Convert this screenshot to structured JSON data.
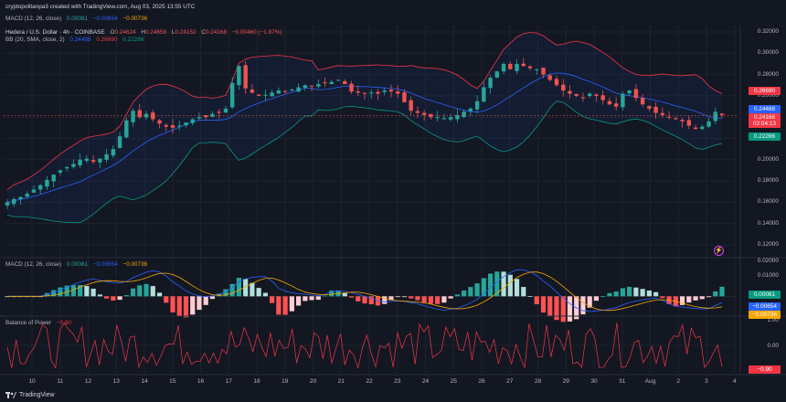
{
  "header": {
    "attribution": "cryptopolitanpa3 created with TradingView.com, Aug 03, 2025 13:55 UTC",
    "macd_top": {
      "label": "MACD (12, 26, close)",
      "v1": "0.00081",
      "v2": "−0.00654",
      "v3": "−0.00736"
    },
    "symbol": "Hedera / U.S. Dollar · 4h · COINBASE",
    "ohlc": {
      "o_label": "O",
      "o": "0.24624",
      "h_label": "H",
      "h": "0.24658",
      "l_label": "L",
      "l": "0.24152",
      "c_label": "C",
      "c": "0.24168",
      "chg": "−0.00460 (−1.87%)"
    },
    "bb": {
      "label": "BB (20, SMA, close, 2)",
      "basis": "0.24488",
      "upper": "0.26690",
      "lower": "0.22286"
    }
  },
  "price_axis": {
    "labels": [
      "0.32000",
      "0.30000",
      "0.28000",
      "0.26000",
      "0.24000",
      "0.22000",
      "0.20000",
      "0.18000",
      "0.16000",
      "0.14000",
      "0.12000"
    ],
    "badges": [
      {
        "value": "0.26690",
        "color": "#f23645"
      },
      {
        "value": "0.24488",
        "color": "#2962ff"
      },
      {
        "value": "0.24168",
        "color": "#f23645"
      },
      {
        "value": "02:04:13",
        "color": "#f23645"
      },
      {
        "value": "0.22286",
        "color": "#089981"
      }
    ]
  },
  "macd_panel": {
    "label": "MACD (12, 26, close)",
    "v1": "0.00081",
    "v2": "−0.00654",
    "v3": "−0.00736",
    "axis_labels": [
      "0.02000",
      "0.01000"
    ],
    "badges": [
      {
        "value": "0.00081",
        "color": "#089981"
      },
      {
        "value": "−0.00654",
        "color": "#2962ff"
      },
      {
        "value": "−0.00736",
        "color": "#f7a600"
      }
    ]
  },
  "bop_panel": {
    "label": "Balance of Power",
    "value": "−0.90",
    "axis_labels": [
      "1.00",
      "0.00"
    ],
    "badge": {
      "value": "−0.90",
      "color": "#f23645"
    }
  },
  "time_axis": [
    "10",
    "11",
    "12",
    "13",
    "14",
    "15",
    "16",
    "17",
    "18",
    "19",
    "20",
    "21",
    "22",
    "23",
    "24",
    "25",
    "26",
    "27",
    "28",
    "29",
    "30",
    "31",
    "Aug",
    "2",
    "3",
    "4"
  ],
  "footer": {
    "brand": "TradingView"
  },
  "colors": {
    "bg": "#131722",
    "up": "#26a69a",
    "down": "#ef5350",
    "bb_upper": "#f23645",
    "bb_basis": "#2962ff",
    "bb_lower": "#089981",
    "macd": "#2962ff",
    "signal": "#f7a600",
    "bop": "#f23645"
  },
  "chart_data": [
    {
      "type": "candlestick",
      "title": "Hedera / U.S. Dollar · 4h · COINBASE",
      "x_range": [
        "Jul 9",
        "Aug 3"
      ],
      "ylim": [
        0.11,
        0.33
      ],
      "close_path": [
        0.16,
        0.163,
        0.165,
        0.168,
        0.172,
        0.176,
        0.181,
        0.186,
        0.19,
        0.193,
        0.196,
        0.2,
        0.201,
        0.198,
        0.201,
        0.205,
        0.21,
        0.222,
        0.237,
        0.246,
        0.24,
        0.243,
        0.238,
        0.234,
        0.231,
        0.23,
        0.232,
        0.235,
        0.238,
        0.24,
        0.24,
        0.243,
        0.244,
        0.248,
        0.272,
        0.288,
        0.267,
        0.263,
        0.26,
        0.261,
        0.263,
        0.265,
        0.264,
        0.266,
        0.268,
        0.27,
        0.269,
        0.271,
        0.272,
        0.273,
        0.275,
        0.271,
        0.264,
        0.263,
        0.262,
        0.263,
        0.262,
        0.265,
        0.264,
        0.262,
        0.254,
        0.246,
        0.244,
        0.242,
        0.24,
        0.24,
        0.239,
        0.24,
        0.242,
        0.245,
        0.248,
        0.255,
        0.268,
        0.277,
        0.283,
        0.29,
        0.285,
        0.29,
        0.288,
        0.286,
        0.285,
        0.28,
        0.275,
        0.27,
        0.265,
        0.262,
        0.26,
        0.258,
        0.262,
        0.26,
        0.256,
        0.252,
        0.25,
        0.262,
        0.265,
        0.258,
        0.252,
        0.248,
        0.244,
        0.242,
        0.24,
        0.238,
        0.236,
        0.232,
        0.229,
        0.231,
        0.236,
        0.245,
        0.242
      ],
      "bb": {
        "basis": 0.24488,
        "upper": 0.2669,
        "lower": 0.22286
      },
      "last": 0.24168
    },
    {
      "type": "line",
      "title": "MACD (12, 26, close)",
      "series": [
        {
          "name": "MACD",
          "last": 0.00081
        },
        {
          "name": "Signal",
          "last": -0.00654
        },
        {
          "name": "Histogram",
          "last": -0.00736
        }
      ],
      "ylim": [
        -0.012,
        0.022
      ]
    },
    {
      "type": "line",
      "title": "Balance of Power",
      "series": [
        {
          "name": "Balance of Power",
          "last": -0.9
        }
      ],
      "ylim": [
        -1.15,
        1.15
      ]
    }
  ]
}
